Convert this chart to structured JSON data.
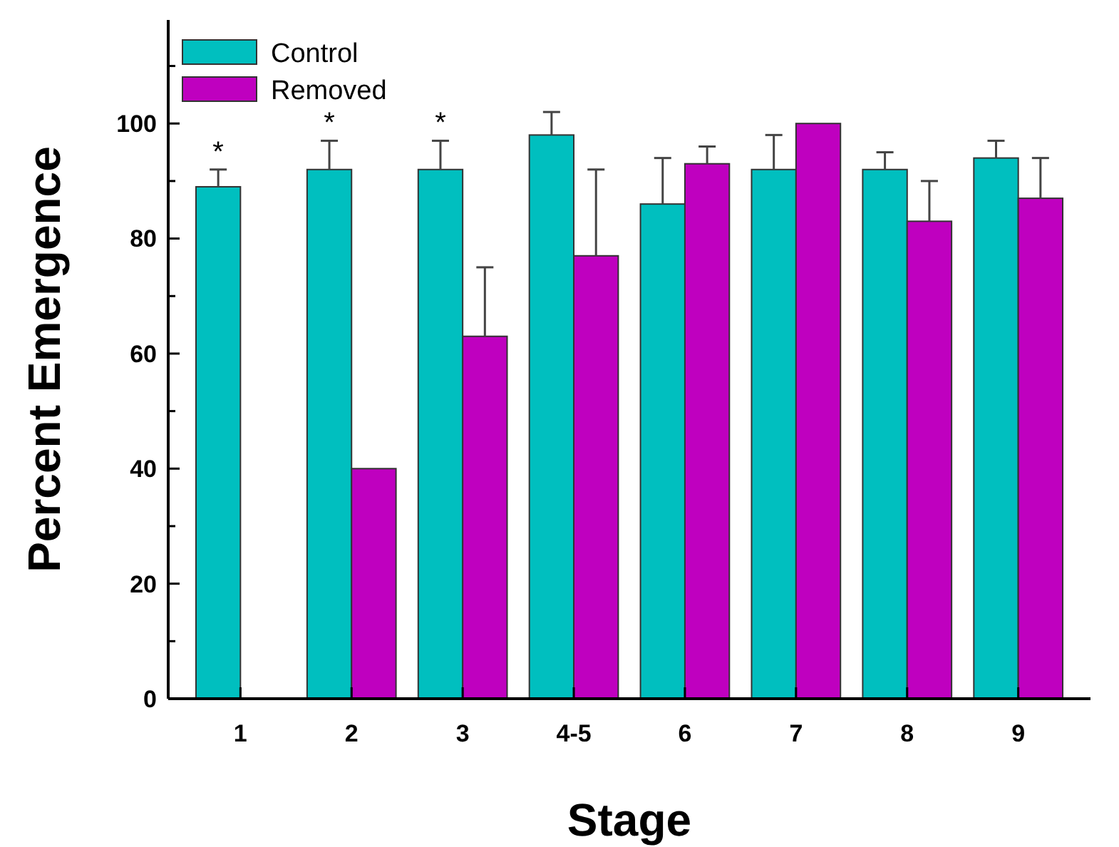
{
  "chart_data": {
    "type": "bar",
    "xlabel": "Stage",
    "ylabel": "Percent Emergence",
    "categories": [
      "1",
      "2",
      "3",
      "4-5",
      "6",
      "7",
      "8",
      "9"
    ],
    "series": [
      {
        "name": "Control",
        "color": "#00bfbf",
        "values": [
          89,
          92,
          92,
          98,
          86,
          92,
          92,
          94
        ],
        "errors": [
          [
            89,
            92
          ],
          [
            92,
            97
          ],
          [
            92,
            97
          ],
          [
            98,
            102
          ],
          [
            86,
            94
          ],
          [
            92,
            98
          ],
          [
            92,
            95
          ],
          [
            94,
            97
          ]
        ]
      },
      {
        "name": "Removed",
        "color": "#bf00bf",
        "values": [
          0,
          40,
          63,
          77,
          93,
          100,
          83,
          87
        ],
        "errors": [
          null,
          null,
          [
            63,
            75
          ],
          [
            77,
            92
          ],
          [
            93,
            96
          ],
          null,
          [
            83,
            90
          ],
          [
            87,
            94
          ]
        ]
      }
    ],
    "ylim": [
      0,
      118
    ],
    "yticks": [
      0,
      {
        "value": 10,
        "label": null
      },
      20,
      {
        "value": 30,
        "label": null
      },
      40,
      {
        "value": 50,
        "label": null
      },
      60,
      {
        "value": 70,
        "label": null
      },
      80,
      {
        "value": 90,
        "label": null
      },
      100,
      {
        "value": 110,
        "label": null
      }
    ],
    "grid": false,
    "legend": "top left",
    "annotations": [
      {
        "text": "*",
        "x": "1",
        "y": 89
      },
      {
        "text": "*",
        "x": "2",
        "y": 92
      },
      {
        "text": "*",
        "x": "3",
        "y": 92
      }
    ]
  }
}
